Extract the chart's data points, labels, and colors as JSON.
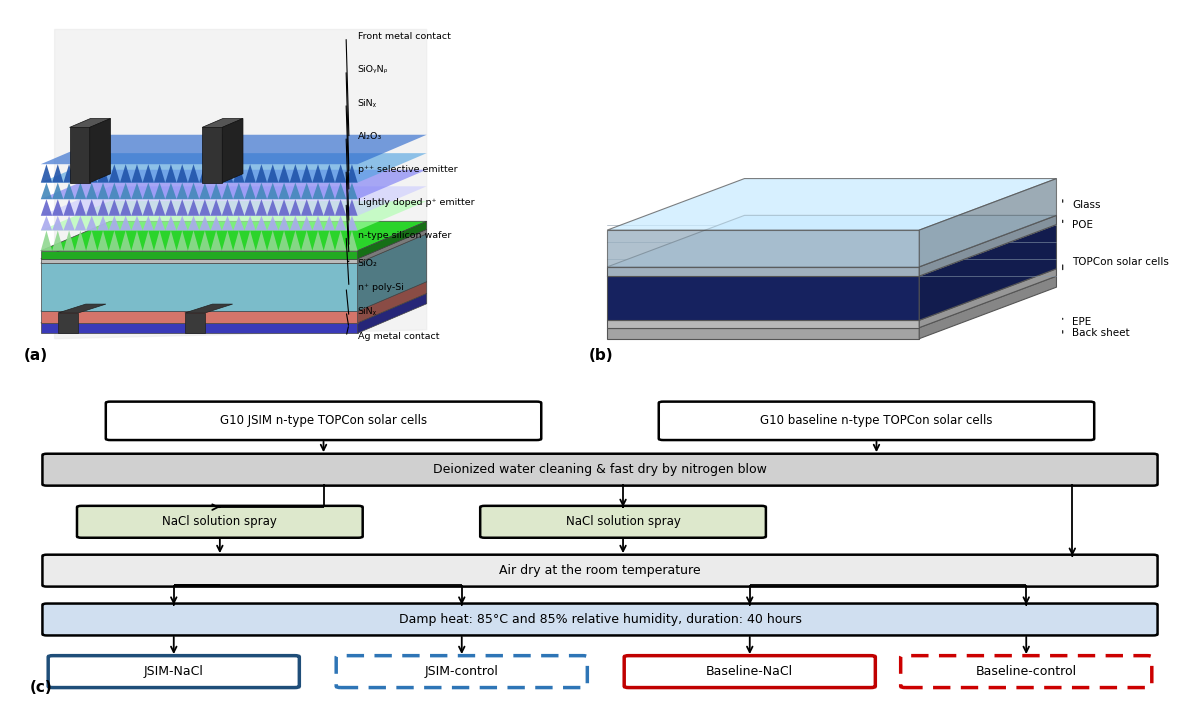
{
  "flowchart_box1": "G10 JSIM n-type TOPCon solar cells",
  "flowchart_box2": "G10 baseline n-type TOPCon solar cells",
  "flowchart_deionized": "Deionized water cleaning & fast dry by nitrogen blow",
  "flowchart_nacl1": "NaCl solution spray",
  "flowchart_nacl2": "NaCl solution spray",
  "flowchart_airdry": "Air dry at the room temperature",
  "flowchart_dampheat": "Damp heat: 85°C and 85% relative humidity, duration: 40 hours",
  "output_jsim_nacl": "JSIM-NaCl",
  "output_jsim_ctrl": "JSIM-control",
  "output_baseline_nacl": "Baseline-NaCl",
  "output_baseline_ctrl": "Baseline-control",
  "panel_b_layers": [
    "Glass",
    "POE",
    "TOPCon solar cells",
    "EPE",
    "Back sheet"
  ],
  "panel_a_labels": [
    "Front metal contact",
    "SiOᵧNᵨ",
    "SiNᵪ",
    "Al₂O₃",
    "p⁺⁺ selective emitter",
    "Lightly doped p⁺ emitter",
    "n-type silicon wafer",
    "SiO₂",
    "n⁺ poly-Si",
    "SiNᵪ",
    "Ag metal contact"
  ],
  "color_deionized_bg": "#d0d0d0",
  "color_nacl_bg": "#dde8cc",
  "color_airdry_bg": "#ebebeb",
  "color_dampheat_bg": "#d0dff0",
  "color_jsim_blue": "#1F4E79",
  "color_baseline_red": "#C00000",
  "color_dashed_blue": "#2E75B6",
  "color_dashed_red": "#CC0000",
  "background_color": "#ffffff"
}
